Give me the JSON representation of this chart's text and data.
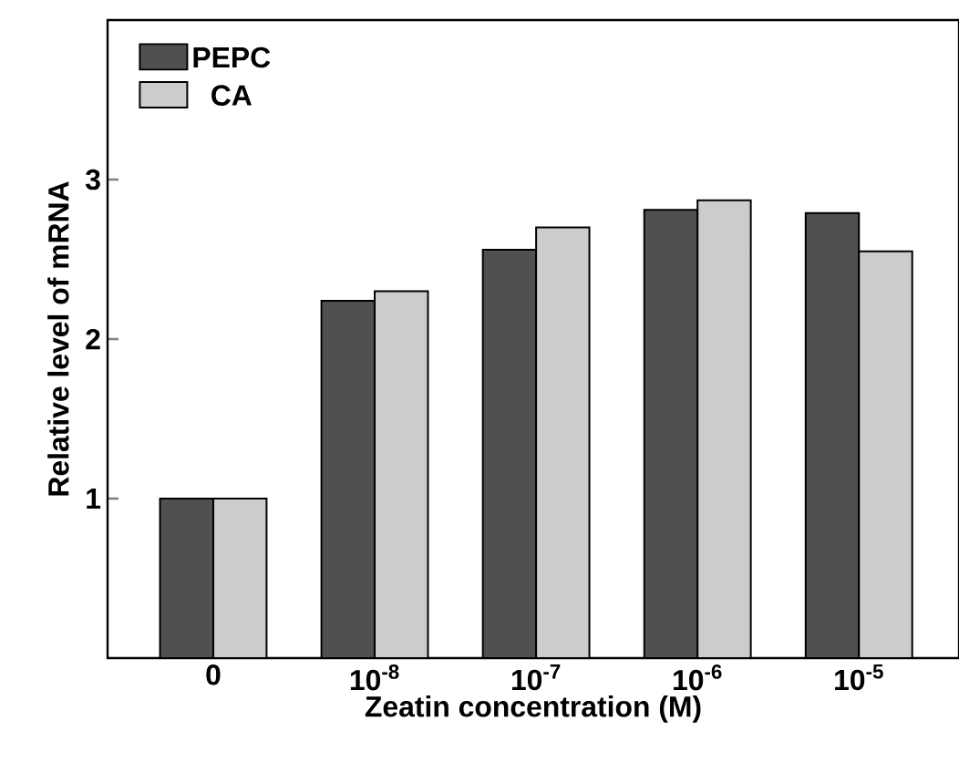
{
  "chart_data": {
    "type": "bar",
    "xlabel": "Zeatin concentration (M)",
    "ylabel": "Relative level of mRNA",
    "categories": [
      "0",
      "10$^{-8}$",
      "10$^{-7}$",
      "10$^{-6}$",
      "10$^{-5}$"
    ],
    "series": [
      {
        "name": "PEPC",
        "color": "#505050",
        "values": [
          1.0,
          2.24,
          2.56,
          2.81,
          2.79
        ]
      },
      {
        "name": "CA",
        "color": "#cccccc",
        "values": [
          1.0,
          2.3,
          2.7,
          2.87,
          2.55
        ]
      }
    ],
    "ylim": [
      0,
      4
    ],
    "yticks": [
      1,
      2,
      3
    ],
    "legend": "top left"
  }
}
